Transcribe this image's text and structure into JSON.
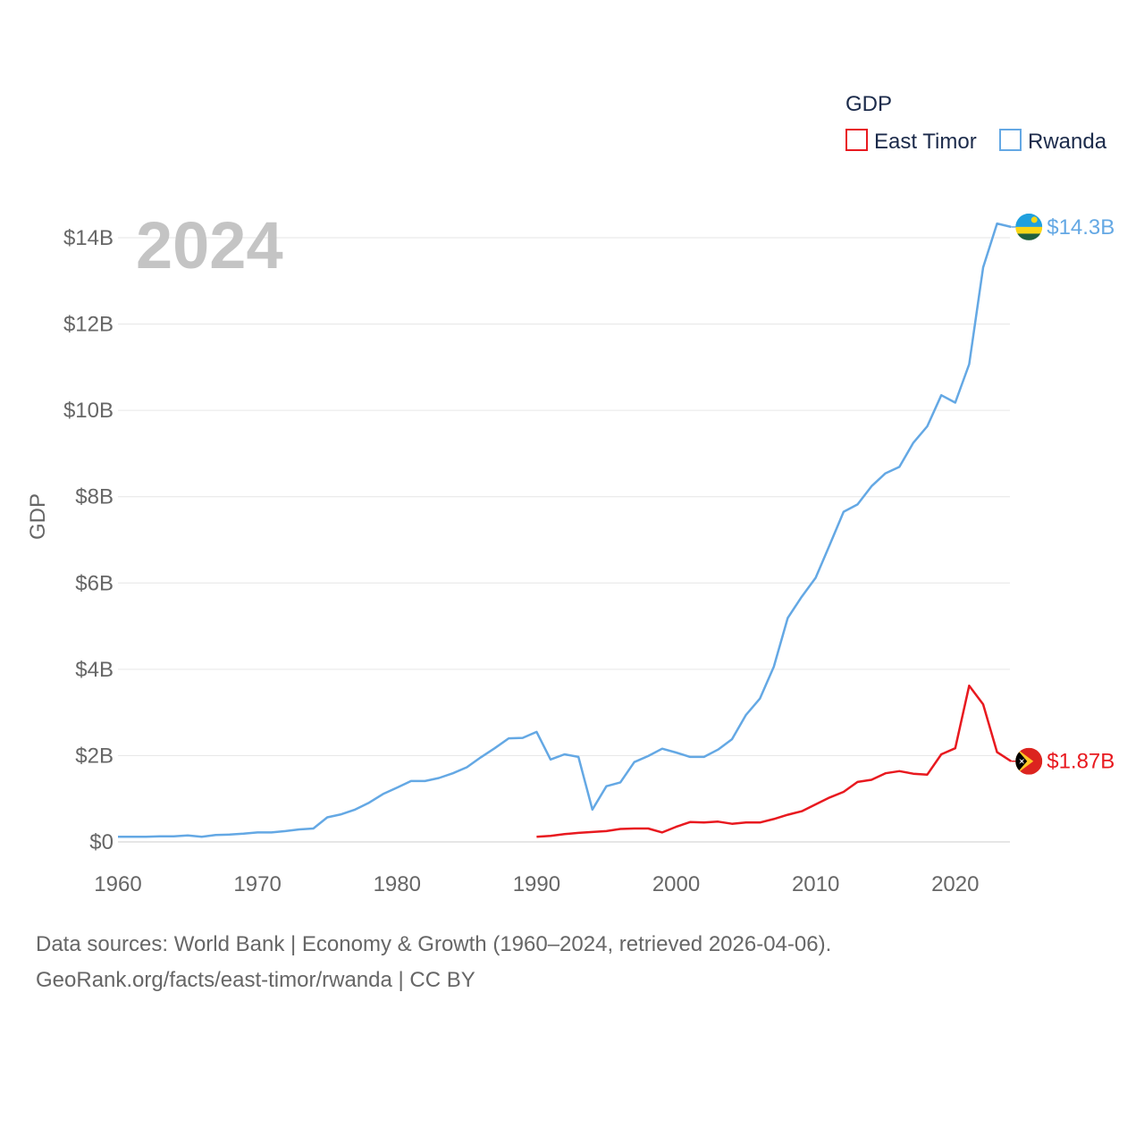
{
  "chart_data": {
    "type": "line",
    "title": "",
    "legend_title": "GDP",
    "legend_position": "top-right",
    "year_label": "2024",
    "xlabel": "",
    "ylabel": "GDP",
    "xlim": [
      1960,
      2024
    ],
    "ylim": [
      0,
      14.5
    ],
    "x_ticks": [
      1960,
      1970,
      1980,
      1990,
      2000,
      2010,
      2020
    ],
    "x_tick_labels": [
      "1960",
      "1970",
      "1980",
      "1990",
      "2000",
      "2010",
      "2020"
    ],
    "y_ticks": [
      0,
      2,
      4,
      6,
      8,
      10,
      12,
      14
    ],
    "y_tick_labels": [
      "$0",
      "$2B",
      "$4B",
      "$6B",
      "$8B",
      "$10B",
      "$12B",
      "$14B"
    ],
    "grid": true,
    "series": [
      {
        "name": "East Timor",
        "color": "#e8191f",
        "end_label": "$1.87B",
        "flag": "east-timor-flag",
        "points": [
          [
            1990,
            0.12
          ],
          [
            1991,
            0.14
          ],
          [
            1992,
            0.18
          ],
          [
            1993,
            0.21
          ],
          [
            1994,
            0.23
          ],
          [
            1995,
            0.25
          ],
          [
            1996,
            0.3
          ],
          [
            1997,
            0.31
          ],
          [
            1998,
            0.31
          ],
          [
            1999,
            0.22
          ],
          [
            2000,
            0.35
          ],
          [
            2001,
            0.46
          ],
          [
            2002,
            0.45
          ],
          [
            2003,
            0.47
          ],
          [
            2004,
            0.42
          ],
          [
            2005,
            0.45
          ],
          [
            2006,
            0.45
          ],
          [
            2007,
            0.53
          ],
          [
            2008,
            0.63
          ],
          [
            2009,
            0.71
          ],
          [
            2010,
            0.87
          ],
          [
            2011,
            1.03
          ],
          [
            2012,
            1.16
          ],
          [
            2013,
            1.39
          ],
          [
            2014,
            1.44
          ],
          [
            2015,
            1.59
          ],
          [
            2016,
            1.64
          ],
          [
            2017,
            1.58
          ],
          [
            2018,
            1.56
          ],
          [
            2019,
            2.03
          ],
          [
            2020,
            2.17
          ],
          [
            2021,
            3.62
          ],
          [
            2022,
            3.19
          ],
          [
            2023,
            2.08
          ],
          [
            2024,
            1.87
          ]
        ]
      },
      {
        "name": "Rwanda",
        "color": "#64a8e4",
        "end_label": "$14.3B",
        "flag": "rwanda-flag",
        "points": [
          [
            1960,
            0.12
          ],
          [
            1961,
            0.12
          ],
          [
            1962,
            0.12
          ],
          [
            1963,
            0.13
          ],
          [
            1964,
            0.13
          ],
          [
            1965,
            0.15
          ],
          [
            1966,
            0.12
          ],
          [
            1967,
            0.16
          ],
          [
            1968,
            0.17
          ],
          [
            1969,
            0.19
          ],
          [
            1970,
            0.22
          ],
          [
            1971,
            0.22
          ],
          [
            1972,
            0.25
          ],
          [
            1973,
            0.29
          ],
          [
            1974,
            0.31
          ],
          [
            1975,
            0.57
          ],
          [
            1976,
            0.64
          ],
          [
            1977,
            0.75
          ],
          [
            1978,
            0.91
          ],
          [
            1979,
            1.11
          ],
          [
            1980,
            1.26
          ],
          [
            1981,
            1.41
          ],
          [
            1982,
            1.41
          ],
          [
            1983,
            1.48
          ],
          [
            1984,
            1.59
          ],
          [
            1985,
            1.73
          ],
          [
            1986,
            1.96
          ],
          [
            1987,
            2.17
          ],
          [
            1988,
            2.4
          ],
          [
            1989,
            2.41
          ],
          [
            1990,
            2.55
          ],
          [
            1991,
            1.91
          ],
          [
            1992,
            2.03
          ],
          [
            1993,
            1.97
          ],
          [
            1994,
            0.75
          ],
          [
            1995,
            1.29
          ],
          [
            1996,
            1.38
          ],
          [
            1997,
            1.85
          ],
          [
            1998,
            1.99
          ],
          [
            1999,
            2.16
          ],
          [
            2000,
            2.07
          ],
          [
            2001,
            1.97
          ],
          [
            2002,
            1.97
          ],
          [
            2003,
            2.14
          ],
          [
            2004,
            2.38
          ],
          [
            2005,
            2.94
          ],
          [
            2006,
            3.32
          ],
          [
            2007,
            4.06
          ],
          [
            2008,
            5.19
          ],
          [
            2009,
            5.68
          ],
          [
            2010,
            6.12
          ],
          [
            2011,
            6.88
          ],
          [
            2012,
            7.65
          ],
          [
            2013,
            7.82
          ],
          [
            2014,
            8.24
          ],
          [
            2015,
            8.54
          ],
          [
            2016,
            8.69
          ],
          [
            2017,
            9.25
          ],
          [
            2018,
            9.63
          ],
          [
            2019,
            10.35
          ],
          [
            2020,
            10.18
          ],
          [
            2021,
            11.07
          ],
          [
            2022,
            13.31
          ],
          [
            2023,
            14.33
          ],
          [
            2024,
            14.25
          ]
        ]
      }
    ]
  },
  "footer": {
    "sources": "Data sources: World Bank | Economy & Growth (1960–2024, retrieved 2026-04-06).",
    "attribution": "GeoRank.org/facts/east-timor/rwanda | CC BY"
  }
}
